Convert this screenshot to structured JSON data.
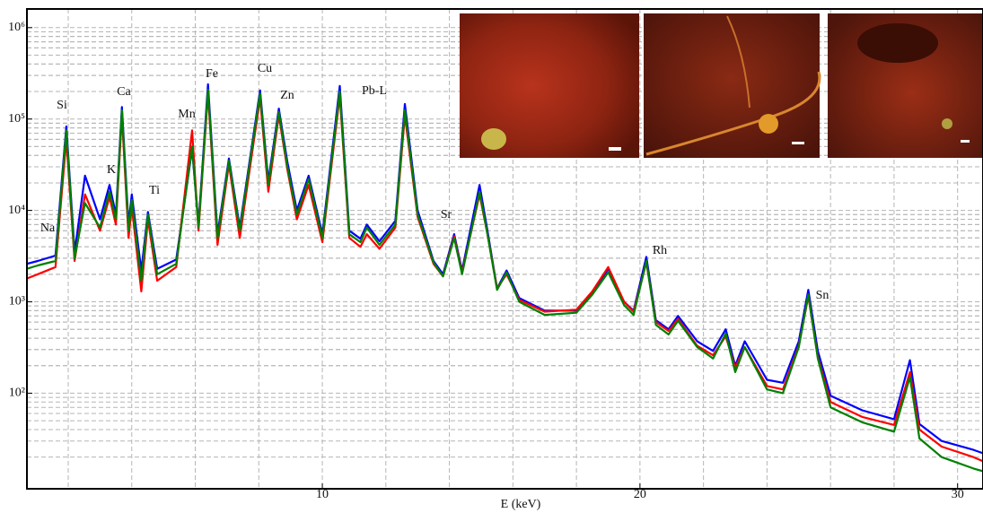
{
  "chart_data": {
    "type": "line",
    "x_label": "E (keV)",
    "ylog": true,
    "grid": true,
    "minor_grid": true,
    "xlim": [
      0.7,
      30.8
    ],
    "ylim": [
      9,
      1600000
    ],
    "xticks": [
      10,
      20,
      30
    ],
    "yticks": [
      {
        "value": 100,
        "label": "10²"
      },
      {
        "value": 1000,
        "label": "10³"
      },
      {
        "value": 10000,
        "label": "10⁴"
      },
      {
        "value": 100000,
        "label": "10⁵"
      },
      {
        "value": 1000000,
        "label": "10⁶"
      }
    ],
    "annotations": [
      "Na",
      "Si",
      "K",
      "Ca",
      "Ti",
      "Mn",
      "Fe",
      "Cu",
      "Zn",
      "Pb-L",
      "Sr",
      "Rh",
      "Sn"
    ],
    "x": [
      0.7,
      1.04,
      1.6,
      1.94,
      2.2,
      2.53,
      3.0,
      3.3,
      3.5,
      3.69,
      3.9,
      4.0,
      4.3,
      4.51,
      4.8,
      5.4,
      5.9,
      6.1,
      6.4,
      6.7,
      7.06,
      7.4,
      8.04,
      8.3,
      8.63,
      8.9,
      9.2,
      9.57,
      10.0,
      10.55,
      10.85,
      11.2,
      11.4,
      11.8,
      12.3,
      12.6,
      13.0,
      13.5,
      13.8,
      14.15,
      14.4,
      14.95,
      15.2,
      15.5,
      15.8,
      16.2,
      17,
      18,
      18.5,
      19.0,
      19.5,
      19.8,
      20.2,
      20.5,
      20.9,
      21.2,
      21.8,
      22.3,
      22.7,
      23.0,
      23.3,
      24.0,
      24.5,
      25.0,
      25.3,
      25.6,
      26.0,
      27,
      28,
      28.5,
      28.8,
      29.5,
      30.5,
      30.8
    ],
    "series": [
      {
        "color": "#0000ff",
        "values": [
          2600,
          2800,
          3200,
          83000,
          3500,
          24000,
          8000,
          19000,
          9000,
          135000,
          7000,
          15000,
          2200,
          9600,
          2300,
          2900,
          47000,
          7000,
          240000,
          5500,
          37000,
          6500,
          205000,
          21000,
          130000,
          34000,
          10000,
          24000,
          5500,
          230000,
          6000,
          4900,
          7000,
          4600,
          7700,
          146000,
          10000,
          2800,
          2000,
          5500,
          2200,
          19000,
          6000,
          1400,
          2200,
          1100,
          800,
          800,
          1250,
          2300,
          1000,
          800,
          3100,
          630,
          500,
          700,
          370,
          290,
          500,
          200,
          370,
          140,
          130,
          370,
          1350,
          290,
          94,
          65,
          52,
          230,
          46,
          30,
          24,
          22
        ]
      },
      {
        "color": "#ff0000",
        "values": [
          1800,
          2000,
          2400,
          60000,
          2800,
          15000,
          6000,
          14000,
          7000,
          110000,
          5000,
          11000,
          1300,
          8000,
          1700,
          2400,
          75000,
          6000,
          190000,
          4200,
          32000,
          5000,
          170000,
          16000,
          110000,
          28000,
          8000,
          19000,
          4500,
          180000,
          5000,
          4000,
          5500,
          3800,
          6500,
          110000,
          8500,
          2600,
          1900,
          5200,
          2100,
          15000,
          5500,
          1400,
          2000,
          1050,
          780,
          820,
          1300,
          2400,
          1000,
          780,
          2700,
          600,
          480,
          650,
          330,
          260,
          420,
          190,
          320,
          120,
          110,
          330,
          1150,
          250,
          80,
          55,
          45,
          170,
          40,
          26,
          20,
          18
        ]
      },
      {
        "color": "#008000",
        "values": [
          2300,
          2500,
          2800,
          75000,
          3000,
          12000,
          6500,
          16000,
          8000,
          125000,
          6000,
          13000,
          1700,
          9000,
          2000,
          2600,
          50000,
          6500,
          210000,
          5000,
          35000,
          6000,
          190000,
          19000,
          120000,
          30000,
          9000,
          22000,
          5000,
          200000,
          5500,
          4500,
          6500,
          4200,
          7000,
          125000,
          9000,
          2700,
          1900,
          5000,
          2000,
          16000,
          5500,
          1350,
          2100,
          1000,
          720,
          760,
          1200,
          2100,
          920,
          720,
          2800,
          560,
          440,
          620,
          320,
          240,
          450,
          170,
          320,
          110,
          100,
          320,
          1200,
          240,
          70,
          48,
          38,
          150,
          32,
          20,
          15,
          14
        ]
      }
    ]
  }
}
